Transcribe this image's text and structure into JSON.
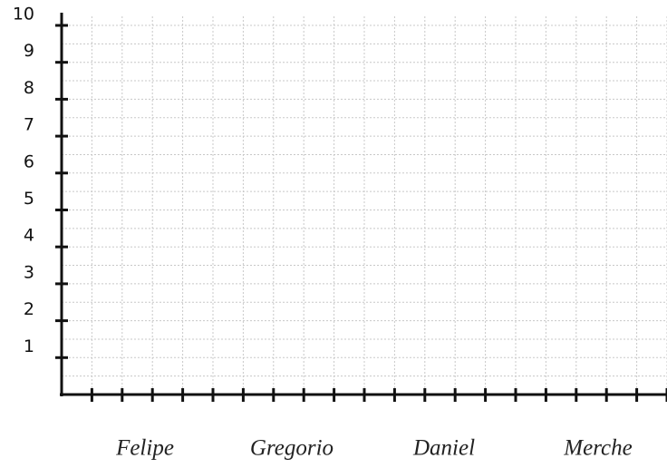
{
  "chart_data": {
    "type": "bar",
    "categories": [
      "Felipe",
      "Gregorio",
      "Daniel",
      "Merche"
    ],
    "ylim": [
      0,
      10
    ],
    "yticks": [
      1,
      2,
      3,
      4,
      5,
      6,
      7,
      8,
      9,
      10
    ],
    "grid": true
  }
}
